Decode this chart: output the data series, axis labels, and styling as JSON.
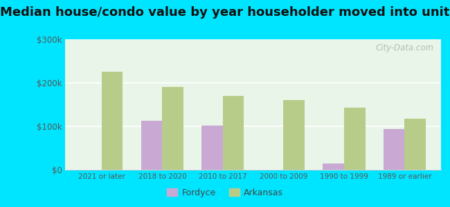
{
  "title": "Median house/condo value by year householder moved into unit",
  "categories": [
    "2021 or later",
    "2018 to 2020",
    "2010 to 2017",
    "2000 to 2009",
    "1990 to 1999",
    "1989 or earlier"
  ],
  "fordyce_values": [
    0,
    113000,
    102000,
    0,
    15000,
    93000
  ],
  "arkansas_values": [
    225000,
    190000,
    170000,
    160000,
    143000,
    117000
  ],
  "fordyce_color": "#c9a8d4",
  "arkansas_color": "#b8cc8a",
  "background_color": "#00e5ff",
  "plot_bg": "#e8f5e8",
  "ylim": [
    0,
    300000
  ],
  "yticks": [
    0,
    100000,
    200000,
    300000
  ],
  "ytick_labels": [
    "$0",
    "$100k",
    "$200k",
    "$300k"
  ],
  "legend_fordyce": "Fordyce",
  "legend_arkansas": "Arkansas",
  "bar_width": 0.35,
  "watermark": "City-Data.com",
  "title_fontsize": 13
}
